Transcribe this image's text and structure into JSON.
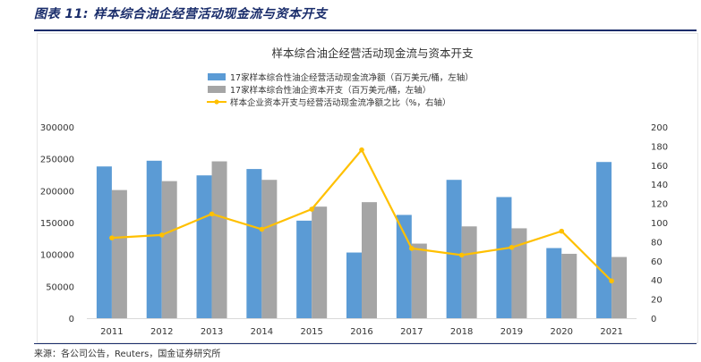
{
  "figure": {
    "label": "图表 11:",
    "title": "样本综合油企经营活动现金流与资本开支",
    "source": "来源：各公司公告，Reuters，国金证券研究所"
  },
  "chart_data": {
    "type": "bar",
    "title": "样本综合油企经营活动现金流与资本开支",
    "categories": [
      "2011",
      "2012",
      "2013",
      "2014",
      "2015",
      "2016",
      "2017",
      "2018",
      "2019",
      "2020",
      "2021"
    ],
    "series": [
      {
        "name": "17家样本综合性油企经营活动现金流净额（百万美元/桶，左轴）",
        "type": "bar",
        "axis": "left",
        "color": "#5b9bd5",
        "values": [
          238000,
          247000,
          224000,
          234000,
          153000,
          103000,
          162000,
          217000,
          190000,
          110000,
          245000
        ]
      },
      {
        "name": "17家样本综合性油企资本开支（百万美元/桶，左轴）",
        "type": "bar",
        "axis": "left",
        "color": "#a5a5a5",
        "values": [
          201000,
          215000,
          246000,
          217000,
          175000,
          182000,
          117000,
          144000,
          141000,
          101000,
          96000
        ]
      },
      {
        "name": "样本企业资本开支与经营活动现金流净额之比（%，右轴）",
        "type": "line",
        "axis": "right",
        "color": "#ffc000",
        "values": [
          84,
          87,
          109,
          93,
          114,
          176,
          73,
          66,
          74,
          91,
          39
        ]
      }
    ],
    "y_left": {
      "min": 0,
      "max": 300000,
      "ticks": [
        "0",
        "50000",
        "100000",
        "150000",
        "200000",
        "250000",
        "300000"
      ]
    },
    "y_right": {
      "min": 0,
      "max": 200,
      "ticks": [
        "0",
        "20",
        "40",
        "60",
        "80",
        "100",
        "120",
        "140",
        "160",
        "180",
        "200"
      ]
    },
    "grid": false,
    "legend_position": "top"
  }
}
